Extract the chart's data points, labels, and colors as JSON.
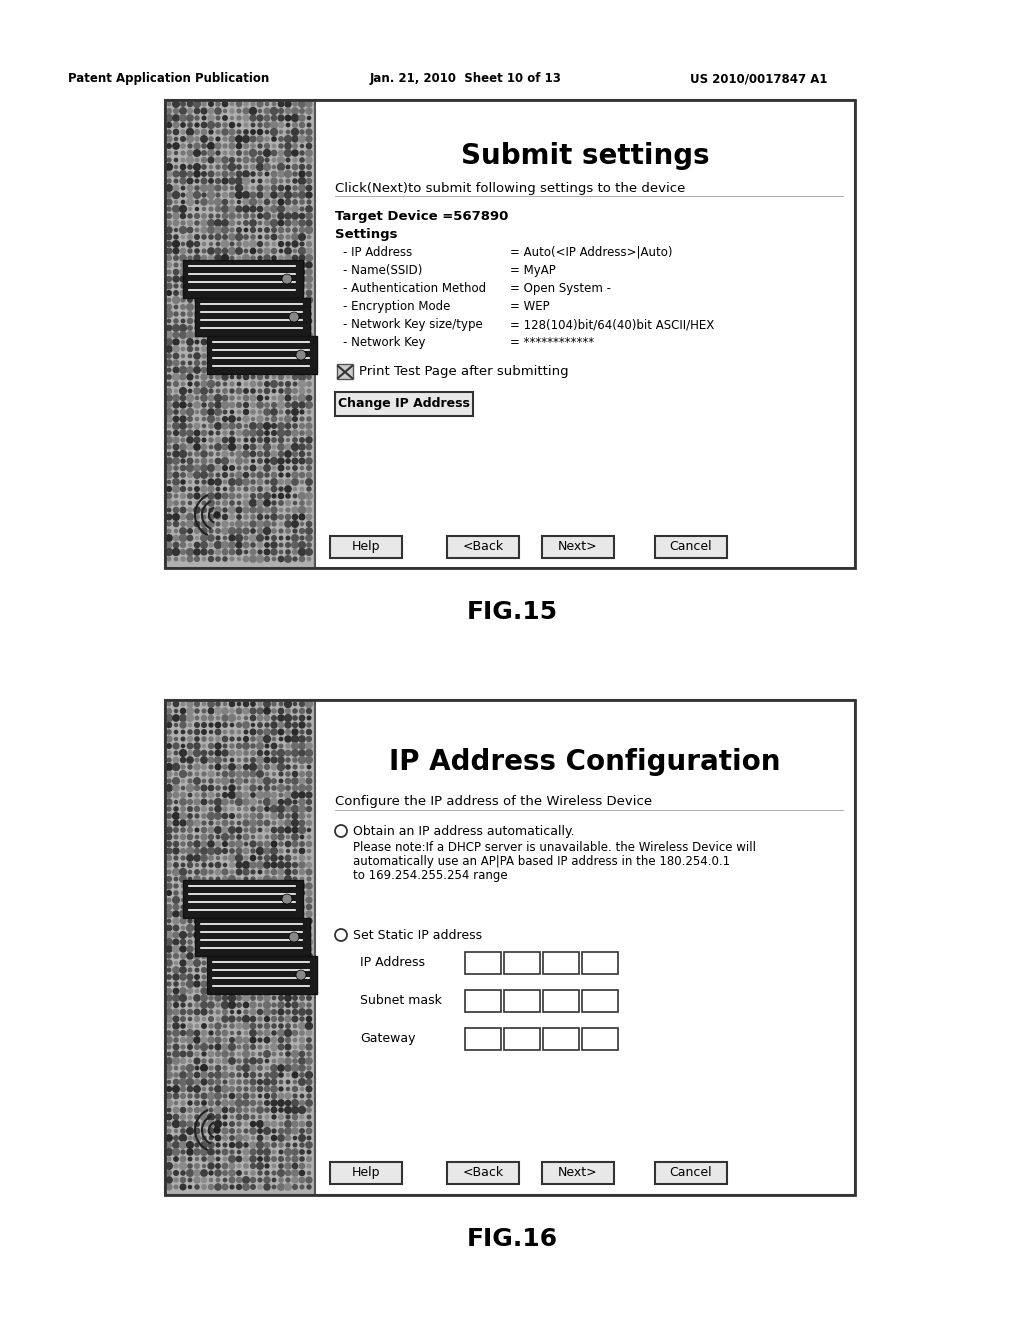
{
  "bg_color": "#ffffff",
  "header_left": "Patent Application Publication",
  "header_mid": "Jan. 21, 2010  Sheet 10 of 13",
  "header_right": "US 2010/0017847 A1",
  "fig15": {
    "title": "Submit settings",
    "subtitle": "Click(Next)to submit following settings to the device",
    "target_device": "Target Device =567890",
    "settings_label": "Settings",
    "settings_items": [
      [
        "- IP Address",
        "= Auto(<IP Address>|Auto)"
      ],
      [
        "- Name(SSID)",
        "= MyAP"
      ],
      [
        "- Authentication Method",
        "= Open System -"
      ],
      [
        "- Encryption Mode",
        "= WEP"
      ],
      [
        "- Network Key size/type",
        "= 128(104)bit/64(40)bit ASCII/HEX"
      ],
      [
        "- Network Key",
        "= ************"
      ]
    ],
    "checkbox_text": "Print Test Page after submitting",
    "change_btn": "Change IP Address",
    "buttons": [
      "Help",
      "<Back",
      "Next>",
      "Cancel"
    ],
    "fig_label": "FIG.15"
  },
  "fig16": {
    "title": "IP Address Configuration",
    "subtitle": "Configure the IP address of the Wireless Device",
    "radio1_text": "Obtain an IP address automatically.",
    "radio1_note_lines": [
      "Please note:If a DHCP server is unavailable. the Wireless Device will",
      "automatically use an AP|PA based IP address in the 180.254.0.1",
      "to 169.254.255.254 range"
    ],
    "radio2_text": "Set Static IP address",
    "fields": [
      "IP Address",
      "Subnet mask",
      "Gateway"
    ],
    "buttons": [
      "Help",
      "<Back",
      "Next>",
      "Cancel"
    ],
    "fig_label": "FIG.16"
  }
}
